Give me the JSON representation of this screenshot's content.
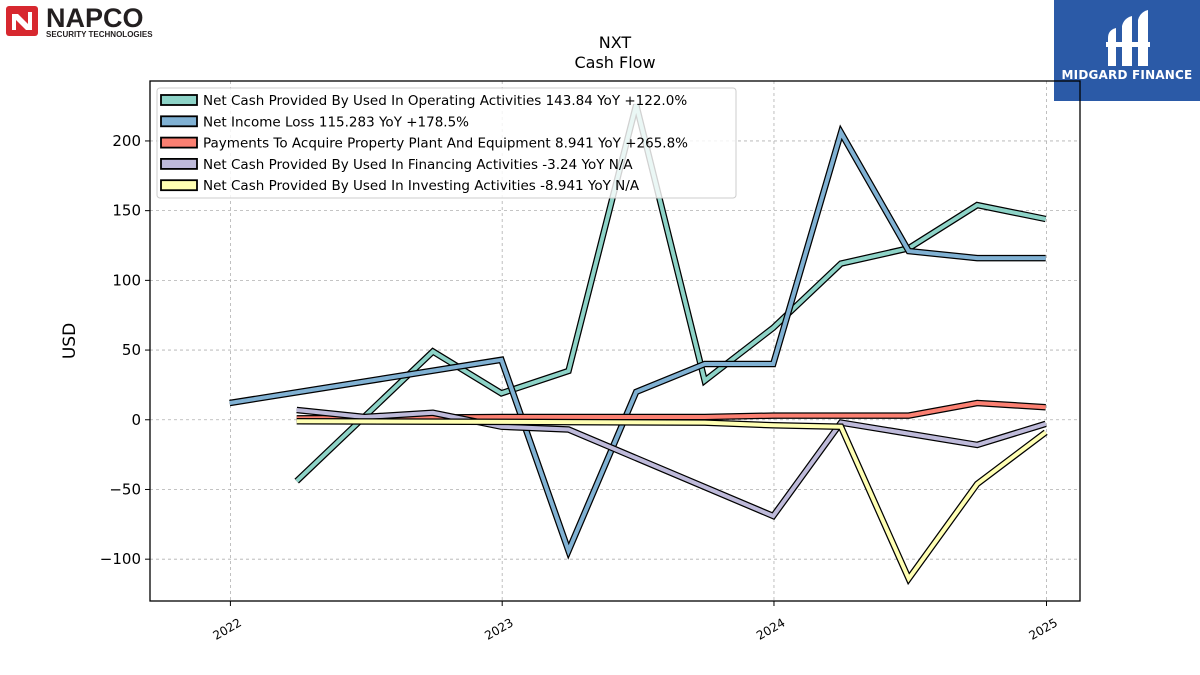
{
  "logos": {
    "napco_name": "NAPCO",
    "napco_tagline": "SECURITY TECHNOLOGIES",
    "midgard_name": "MIDGARD FINANCE"
  },
  "chart_data": {
    "type": "line",
    "title": "NXT",
    "subtitle": "Cash Flow",
    "ylabel": "USD",
    "xlabel": "",
    "ylim": [
      -130,
      243
    ],
    "yticks": [
      -100,
      -50,
      0,
      50,
      100,
      150,
      200
    ],
    "ytick_labels": [
      "−100",
      "−50",
      "0",
      "50",
      "100",
      "150",
      "200"
    ],
    "xlim": [
      "2021-09-15",
      "2025-02-15"
    ],
    "xticks": [
      "2022-01-01",
      "2023-01-01",
      "2024-01-01",
      "2025-01-01"
    ],
    "xtick_labels": [
      "2022",
      "2023",
      "2024",
      "2025"
    ],
    "grid": true,
    "legend_position": "upper-left",
    "series": [
      {
        "name": "Net Cash Provided By Used In Operating Activities",
        "legend": "Net Cash Provided By Used In Operating Activities  143.84 YoY +122.0%",
        "color": "#8dd3c7",
        "points": [
          [
            "2022-03-31",
            -44
          ],
          [
            "2022-09-30",
            49
          ],
          [
            "2022-12-31",
            19
          ],
          [
            "2023-03-31",
            35
          ],
          [
            "2023-06-30",
            226
          ],
          [
            "2023-09-30",
            28
          ],
          [
            "2023-12-31",
            66
          ],
          [
            "2024-03-31",
            112
          ],
          [
            "2024-06-30",
            123
          ],
          [
            "2024-09-30",
            154
          ],
          [
            "2024-12-31",
            144
          ]
        ]
      },
      {
        "name": "Net Income Loss",
        "legend": "Net Income Loss  115.283 YoY +178.5%",
        "color": "#80b1d3",
        "points": [
          [
            "2021-12-31",
            12
          ],
          [
            "2022-12-31",
            43
          ],
          [
            "2023-03-31",
            -94
          ],
          [
            "2023-06-30",
            20
          ],
          [
            "2023-09-30",
            40
          ],
          [
            "2023-12-31",
            40
          ],
          [
            "2024-03-31",
            206
          ],
          [
            "2024-06-30",
            121
          ],
          [
            "2024-09-30",
            116
          ],
          [
            "2024-12-31",
            116
          ]
        ]
      },
      {
        "name": "Payments To Acquire Property Plant And Equipment",
        "legend": "Payments To Acquire Property Plant And Equipment  8.941 YoY +265.8%",
        "color": "#fb8072",
        "points": [
          [
            "2022-03-31",
            1
          ],
          [
            "2022-12-31",
            2
          ],
          [
            "2023-09-30",
            2
          ],
          [
            "2023-12-31",
            3
          ],
          [
            "2024-06-30",
            3
          ],
          [
            "2024-09-30",
            12
          ],
          [
            "2024-12-31",
            9
          ]
        ]
      },
      {
        "name": "Net Cash Provided By Used In Financing Activities",
        "legend": "Net Cash Provided By Used In Financing Activities  -3.24 YoY N/A",
        "color": "#bebada",
        "points": [
          [
            "2022-03-31",
            7
          ],
          [
            "2022-06-30",
            2
          ],
          [
            "2022-09-30",
            5
          ],
          [
            "2022-12-31",
            -5
          ],
          [
            "2023-03-31",
            -7
          ],
          [
            "2023-12-31",
            -69
          ],
          [
            "2024-03-31",
            -2
          ],
          [
            "2024-09-30",
            -18
          ],
          [
            "2024-12-31",
            -3
          ]
        ]
      },
      {
        "name": "Net Cash Provided By Used In Investing Activities",
        "legend": "Net Cash Provided By Used In Investing Activities  -8.941 YoY N/A",
        "color": "#ffffb3",
        "points": [
          [
            "2022-03-31",
            -1
          ],
          [
            "2023-09-30",
            -2
          ],
          [
            "2023-12-31",
            -4
          ],
          [
            "2024-03-31",
            -5
          ],
          [
            "2024-06-30",
            -114
          ],
          [
            "2024-09-30",
            -46
          ],
          [
            "2024-12-31",
            -9
          ]
        ]
      }
    ]
  }
}
